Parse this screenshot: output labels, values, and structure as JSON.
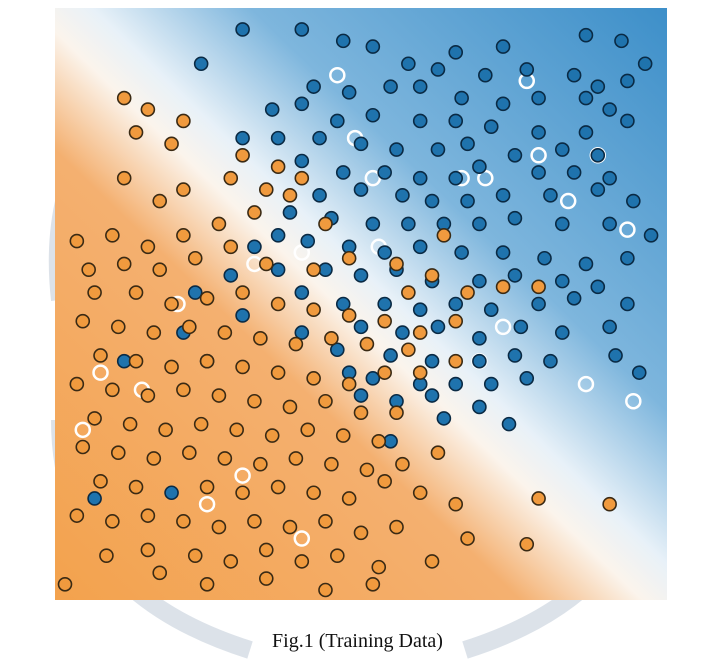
{
  "caption": "Fig.1 (Training Data)",
  "colors": {
    "class_a_fill": "#f09a3e",
    "class_a_stroke": "#3a2a14",
    "class_b_fill": "#1f73ad",
    "class_b_stroke": "#0a2a44",
    "region_a": "#f2a65a",
    "region_b": "#4f9fd6",
    "boundary": "#ffffff",
    "test_point_outline": "#ffffff",
    "watermark": "#d3dbe3"
  },
  "chart_data": {
    "type": "scatter",
    "title": "",
    "xlabel": "",
    "ylabel": "",
    "xlim": [
      0,
      1
    ],
    "ylim": [
      0,
      1
    ],
    "grid": false,
    "legend": "none",
    "background": "decision-region gradient: orange lower-left, blue upper-right, white boundary along the diagonal",
    "series": [
      {
        "class": "blue",
        "points": [
          [
            0.3,
            0.98
          ],
          [
            0.4,
            0.98
          ],
          [
            0.47,
            0.96
          ],
          [
            0.52,
            0.95
          ],
          [
            0.66,
            0.94
          ],
          [
            0.74,
            0.95
          ],
          [
            0.88,
            0.97
          ],
          [
            0.94,
            0.96
          ],
          [
            0.98,
            0.92
          ],
          [
            0.23,
            0.92
          ],
          [
            0.58,
            0.92
          ],
          [
            0.63,
            0.91
          ],
          [
            0.71,
            0.9
          ],
          [
            0.78,
            0.91
          ],
          [
            0.86,
            0.9
          ],
          [
            0.9,
            0.88
          ],
          [
            0.95,
            0.89
          ],
          [
            0.42,
            0.88
          ],
          [
            0.48,
            0.87
          ],
          [
            0.55,
            0.88
          ],
          [
            0.6,
            0.88
          ],
          [
            0.67,
            0.86
          ],
          [
            0.74,
            0.85
          ],
          [
            0.8,
            0.86
          ],
          [
            0.88,
            0.86
          ],
          [
            0.92,
            0.84
          ],
          [
            0.35,
            0.84
          ],
          [
            0.4,
            0.85
          ],
          [
            0.46,
            0.82
          ],
          [
            0.52,
            0.83
          ],
          [
            0.6,
            0.82
          ],
          [
            0.66,
            0.82
          ],
          [
            0.72,
            0.81
          ],
          [
            0.8,
            0.8
          ],
          [
            0.88,
            0.8
          ],
          [
            0.95,
            0.82
          ],
          [
            0.3,
            0.79
          ],
          [
            0.36,
            0.79
          ],
          [
            0.43,
            0.79
          ],
          [
            0.5,
            0.78
          ],
          [
            0.56,
            0.77
          ],
          [
            0.63,
            0.77
          ],
          [
            0.68,
            0.78
          ],
          [
            0.76,
            0.76
          ],
          [
            0.84,
            0.77
          ],
          [
            0.9,
            0.76
          ],
          [
            0.4,
            0.75
          ],
          [
            0.47,
            0.73
          ],
          [
            0.54,
            0.73
          ],
          [
            0.6,
            0.72
          ],
          [
            0.66,
            0.72
          ],
          [
            0.7,
            0.74
          ],
          [
            0.8,
            0.73
          ],
          [
            0.86,
            0.73
          ],
          [
            0.92,
            0.72
          ],
          [
            0.43,
            0.69
          ],
          [
            0.5,
            0.7
          ],
          [
            0.57,
            0.69
          ],
          [
            0.62,
            0.68
          ],
          [
            0.68,
            0.68
          ],
          [
            0.74,
            0.69
          ],
          [
            0.82,
            0.69
          ],
          [
            0.9,
            0.7
          ],
          [
            0.96,
            0.68
          ],
          [
            0.38,
            0.66
          ],
          [
            0.45,
            0.65
          ],
          [
            0.52,
            0.64
          ],
          [
            0.58,
            0.64
          ],
          [
            0.64,
            0.64
          ],
          [
            0.7,
            0.64
          ],
          [
            0.76,
            0.65
          ],
          [
            0.84,
            0.64
          ],
          [
            0.92,
            0.64
          ],
          [
            0.99,
            0.62
          ],
          [
            0.41,
            0.61
          ],
          [
            0.48,
            0.6
          ],
          [
            0.54,
            0.59
          ],
          [
            0.6,
            0.6
          ],
          [
            0.67,
            0.59
          ],
          [
            0.74,
            0.59
          ],
          [
            0.81,
            0.58
          ],
          [
            0.88,
            0.57
          ],
          [
            0.95,
            0.58
          ],
          [
            0.36,
            0.56
          ],
          [
            0.44,
            0.56
          ],
          [
            0.5,
            0.55
          ],
          [
            0.56,
            0.56
          ],
          [
            0.62,
            0.54
          ],
          [
            0.7,
            0.54
          ],
          [
            0.76,
            0.55
          ],
          [
            0.84,
            0.54
          ],
          [
            0.9,
            0.53
          ],
          [
            0.4,
            0.52
          ],
          [
            0.47,
            0.5
          ],
          [
            0.54,
            0.5
          ],
          [
            0.6,
            0.49
          ],
          [
            0.66,
            0.5
          ],
          [
            0.72,
            0.49
          ],
          [
            0.8,
            0.5
          ],
          [
            0.86,
            0.51
          ],
          [
            0.95,
            0.5
          ],
          [
            0.5,
            0.46
          ],
          [
            0.57,
            0.45
          ],
          [
            0.63,
            0.46
          ],
          [
            0.7,
            0.44
          ],
          [
            0.77,
            0.46
          ],
          [
            0.84,
            0.45
          ],
          [
            0.92,
            0.46
          ],
          [
            0.46,
            0.42
          ],
          [
            0.55,
            0.41
          ],
          [
            0.62,
            0.4
          ],
          [
            0.7,
            0.4
          ],
          [
            0.76,
            0.41
          ],
          [
            0.82,
            0.4
          ],
          [
            0.93,
            0.41
          ],
          [
            0.97,
            0.38
          ],
          [
            0.52,
            0.37
          ],
          [
            0.6,
            0.36
          ],
          [
            0.66,
            0.36
          ],
          [
            0.72,
            0.36
          ],
          [
            0.78,
            0.37
          ],
          [
            0.4,
            0.45
          ],
          [
            0.3,
            0.48
          ],
          [
            0.22,
            0.52
          ],
          [
            0.28,
            0.55
          ],
          [
            0.32,
            0.6
          ],
          [
            0.36,
            0.62
          ],
          [
            0.2,
            0.45
          ],
          [
            0.1,
            0.4
          ],
          [
            0.24,
            0.4
          ],
          [
            0.48,
            0.38
          ],
          [
            0.56,
            0.33
          ],
          [
            0.64,
            0.3
          ],
          [
            0.7,
            0.32
          ],
          [
            0.75,
            0.29
          ],
          [
            0.05,
            0.16
          ],
          [
            0.18,
            0.17
          ],
          [
            0.55,
            0.26
          ],
          [
            0.5,
            0.34
          ],
          [
            0.62,
            0.34
          ]
        ]
      },
      {
        "class": "orange",
        "points": [
          [
            0.02,
            0.61
          ],
          [
            0.08,
            0.62
          ],
          [
            0.14,
            0.6
          ],
          [
            0.2,
            0.62
          ],
          [
            0.26,
            0.64
          ],
          [
            0.32,
            0.66
          ],
          [
            0.38,
            0.69
          ],
          [
            0.04,
            0.56
          ],
          [
            0.1,
            0.57
          ],
          [
            0.16,
            0.56
          ],
          [
            0.22,
            0.58
          ],
          [
            0.28,
            0.6
          ],
          [
            0.34,
            0.57
          ],
          [
            0.42,
            0.56
          ],
          [
            0.48,
            0.58
          ],
          [
            0.56,
            0.57
          ],
          [
            0.62,
            0.55
          ],
          [
            0.68,
            0.52
          ],
          [
            0.74,
            0.53
          ],
          [
            0.8,
            0.53
          ],
          [
            0.05,
            0.52
          ],
          [
            0.12,
            0.52
          ],
          [
            0.18,
            0.5
          ],
          [
            0.24,
            0.51
          ],
          [
            0.3,
            0.52
          ],
          [
            0.36,
            0.5
          ],
          [
            0.42,
            0.49
          ],
          [
            0.48,
            0.48
          ],
          [
            0.54,
            0.47
          ],
          [
            0.6,
            0.45
          ],
          [
            0.66,
            0.47
          ],
          [
            0.03,
            0.47
          ],
          [
            0.09,
            0.46
          ],
          [
            0.15,
            0.45
          ],
          [
            0.21,
            0.46
          ],
          [
            0.27,
            0.45
          ],
          [
            0.33,
            0.44
          ],
          [
            0.39,
            0.43
          ],
          [
            0.45,
            0.44
          ],
          [
            0.51,
            0.43
          ],
          [
            0.58,
            0.42
          ],
          [
            0.06,
            0.41
          ],
          [
            0.12,
            0.4
          ],
          [
            0.18,
            0.39
          ],
          [
            0.24,
            0.4
          ],
          [
            0.3,
            0.39
          ],
          [
            0.36,
            0.38
          ],
          [
            0.42,
            0.37
          ],
          [
            0.48,
            0.36
          ],
          [
            0.54,
            0.38
          ],
          [
            0.6,
            0.38
          ],
          [
            0.66,
            0.4
          ],
          [
            0.02,
            0.36
          ],
          [
            0.08,
            0.35
          ],
          [
            0.14,
            0.34
          ],
          [
            0.2,
            0.35
          ],
          [
            0.26,
            0.34
          ],
          [
            0.32,
            0.33
          ],
          [
            0.38,
            0.32
          ],
          [
            0.44,
            0.33
          ],
          [
            0.5,
            0.31
          ],
          [
            0.56,
            0.31
          ],
          [
            0.05,
            0.3
          ],
          [
            0.11,
            0.29
          ],
          [
            0.17,
            0.28
          ],
          [
            0.23,
            0.29
          ],
          [
            0.29,
            0.28
          ],
          [
            0.35,
            0.27
          ],
          [
            0.41,
            0.28
          ],
          [
            0.47,
            0.27
          ],
          [
            0.53,
            0.26
          ],
          [
            0.03,
            0.25
          ],
          [
            0.09,
            0.24
          ],
          [
            0.15,
            0.23
          ],
          [
            0.21,
            0.24
          ],
          [
            0.27,
            0.23
          ],
          [
            0.33,
            0.22
          ],
          [
            0.39,
            0.23
          ],
          [
            0.45,
            0.22
          ],
          [
            0.51,
            0.21
          ],
          [
            0.57,
            0.22
          ],
          [
            0.63,
            0.24
          ],
          [
            0.06,
            0.19
          ],
          [
            0.12,
            0.18
          ],
          [
            0.24,
            0.18
          ],
          [
            0.3,
            0.17
          ],
          [
            0.36,
            0.18
          ],
          [
            0.42,
            0.17
          ],
          [
            0.48,
            0.16
          ],
          [
            0.54,
            0.19
          ],
          [
            0.6,
            0.17
          ],
          [
            0.66,
            0.15
          ],
          [
            0.8,
            0.16
          ],
          [
            0.02,
            0.13
          ],
          [
            0.08,
            0.12
          ],
          [
            0.14,
            0.13
          ],
          [
            0.2,
            0.12
          ],
          [
            0.26,
            0.11
          ],
          [
            0.32,
            0.12
          ],
          [
            0.38,
            0.11
          ],
          [
            0.44,
            0.12
          ],
          [
            0.5,
            0.1
          ],
          [
            0.56,
            0.11
          ],
          [
            0.68,
            0.09
          ],
          [
            0.92,
            0.15
          ],
          [
            0.07,
            0.06
          ],
          [
            0.14,
            0.07
          ],
          [
            0.22,
            0.06
          ],
          [
            0.28,
            0.05
          ],
          [
            0.34,
            0.07
          ],
          [
            0.4,
            0.05
          ],
          [
            0.46,
            0.06
          ],
          [
            0.53,
            0.04
          ],
          [
            0.62,
            0.05
          ],
          [
            0.78,
            0.08
          ],
          [
            0.0,
            0.01
          ],
          [
            0.16,
            0.03
          ],
          [
            0.24,
            0.01
          ],
          [
            0.34,
            0.02
          ],
          [
            0.44,
            0.0
          ],
          [
            0.52,
            0.01
          ],
          [
            0.1,
            0.72
          ],
          [
            0.16,
            0.68
          ],
          [
            0.2,
            0.7
          ],
          [
            0.28,
            0.72
          ],
          [
            0.36,
            0.74
          ],
          [
            0.44,
            0.64
          ],
          [
            0.58,
            0.52
          ],
          [
            0.64,
            0.62
          ],
          [
            0.12,
            0.8
          ],
          [
            0.18,
            0.78
          ],
          [
            0.1,
            0.86
          ],
          [
            0.14,
            0.84
          ],
          [
            0.2,
            0.82
          ],
          [
            0.3,
            0.76
          ],
          [
            0.4,
            0.72
          ],
          [
            0.34,
            0.7
          ]
        ]
      }
    ],
    "test_points_hollow": [
      [
        0.46,
        0.9
      ],
      [
        0.78,
        0.89
      ],
      [
        0.49,
        0.79
      ],
      [
        0.8,
        0.76
      ],
      [
        0.9,
        0.76
      ],
      [
        0.52,
        0.72
      ],
      [
        0.67,
        0.72
      ],
      [
        0.71,
        0.72
      ],
      [
        0.85,
        0.68
      ],
      [
        0.95,
        0.63
      ],
      [
        0.4,
        0.59
      ],
      [
        0.32,
        0.57
      ],
      [
        0.19,
        0.5
      ],
      [
        0.13,
        0.35
      ],
      [
        0.03,
        0.28
      ],
      [
        0.24,
        0.15
      ],
      [
        0.4,
        0.09
      ],
      [
        0.7,
        0.4
      ],
      [
        0.88,
        0.36
      ],
      [
        0.96,
        0.33
      ],
      [
        0.74,
        0.46
      ],
      [
        0.06,
        0.38
      ],
      [
        0.3,
        0.2
      ],
      [
        0.53,
        0.6
      ]
    ]
  }
}
